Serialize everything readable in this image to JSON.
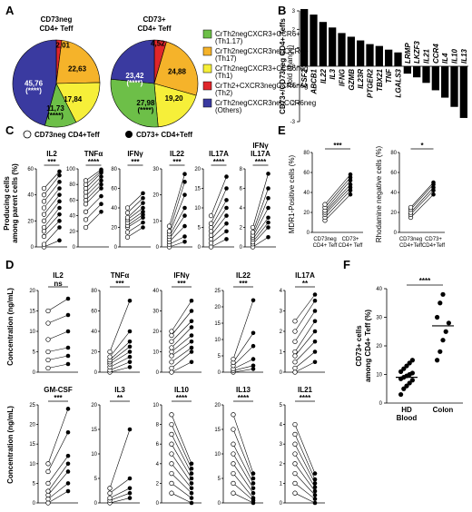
{
  "panels": {
    "A": "A",
    "B": "B",
    "C": "C",
    "D": "D",
    "E": "E",
    "F": "F"
  },
  "chart_data": [
    {
      "type": "pie",
      "panel": "A",
      "title_lines": [
        "CD73neg",
        "CD4+ Teff"
      ],
      "values": [
        2.01,
        22.63,
        17.84,
        11.73,
        45.76
      ],
      "labels": [
        "2,01",
        "22,63",
        "17,84",
        "11,73\n(****)",
        "45,76\n(****)"
      ],
      "colors": [
        "#e0262a",
        "#f5b32a",
        "#f6ef39",
        "#6dbf48",
        "#3a3aa0"
      ]
    },
    {
      "type": "pie",
      "panel": "A",
      "title_lines": [
        "CD73+",
        "CD4+ Teff"
      ],
      "values": [
        4.52,
        24.88,
        19.2,
        27.98,
        23.42
      ],
      "labels": [
        "4,52",
        "24,88",
        "19,20",
        "27,98\n(****)",
        "23,42\n(****)"
      ],
      "colors": [
        "#e0262a",
        "#f5b32a",
        "#f6ef39",
        "#6dbf48",
        "#3a3aa0"
      ]
    },
    {
      "type": "legend",
      "panel": "A",
      "entries": [
        {
          "label": "CrTh2negCXCR3+CCR6+",
          "sub": "(Th1.17)",
          "color": "#6dbf48"
        },
        {
          "label": "CrTh2negCXCR3negCCR6+",
          "sub": "(Th17)",
          "color": "#f5b32a"
        },
        {
          "label": "CrTh2negCXCR3+CCR6neg",
          "sub": "(Th1)",
          "color": "#f6ef39"
        },
        {
          "label": "CrTh2+CXCR3negCCR6neg",
          "sub": "(Th2)",
          "color": "#e0262a"
        },
        {
          "label": "CrTh2negCXCR3negCCR6neg",
          "sub": "(Others)",
          "color": "#3a3aa0"
        }
      ]
    },
    {
      "type": "bar",
      "panel": "B",
      "ylabel": "CD73+/CD73neg CD4+ Teffs",
      "ylabel2": "(fold change)",
      "ylim": [
        -3,
        3
      ],
      "yticks": [
        "3",
        "2",
        "1",
        "0",
        "-1",
        "-2",
        "-3"
      ],
      "categories": [
        "CSF2",
        "ABCB1",
        "IL22",
        "IL3",
        "IFNG",
        "GZMB",
        "IL23R",
        "PTGER2",
        "TBX21",
        "TNF",
        "LGALS3",
        "LRMP",
        "LKZF3",
        "IL21",
        "CCR4",
        "IL4",
        "IL10",
        "IL13"
      ],
      "values": [
        3.1,
        2.8,
        2.4,
        2.1,
        1.8,
        1.6,
        1.4,
        1.2,
        1.1,
        0.9,
        0.75,
        -0.4,
        -0.6,
        -0.9,
        -1.3,
        -1.7,
        -2.2,
        -2.8
      ]
    },
    {
      "type": "scatter",
      "panel": "C",
      "legend": [
        "CD73neg CD4+Teff",
        "CD73+ CD4+Teff"
      ],
      "ylabel": "Producing cells",
      "ylabel2": "among parent cells (%)",
      "plots": [
        {
          "title": "IL2",
          "sig": "***",
          "yticks": [
            "0",
            "20",
            "40",
            "60"
          ],
          "ymax": 60,
          "left": [
            0,
            2,
            8,
            12,
            15,
            20,
            25,
            30,
            35,
            40,
            45
          ],
          "right": [
            5,
            15,
            20,
            25,
            30,
            35,
            40,
            45,
            50,
            55,
            58
          ]
        },
        {
          "title": "TNFα",
          "sig": "****",
          "yticks": [
            "0",
            "20",
            "40",
            "60",
            "80",
            "100"
          ],
          "ymax": 100,
          "left": [
            25,
            35,
            45,
            55,
            60,
            65,
            70,
            75,
            80,
            85
          ],
          "right": [
            45,
            55,
            65,
            75,
            80,
            85,
            90,
            95,
            97,
            99
          ]
        },
        {
          "title": "IFNγ",
          "sig": "***",
          "yticks": [
            "0",
            "20",
            "40",
            "60",
            "80"
          ],
          "ymax": 80,
          "left": [
            10,
            15,
            20,
            22,
            25,
            28,
            30,
            35,
            40
          ],
          "right": [
            20,
            25,
            30,
            33,
            36,
            40,
            45,
            50,
            55
          ]
        },
        {
          "title": "IL22",
          "sig": "***",
          "yticks": [
            "0",
            "10",
            "20",
            "30"
          ],
          "ymax": 30,
          "left": [
            0,
            1,
            2,
            3,
            4,
            5,
            6,
            8
          ],
          "right": [
            2,
            4,
            8,
            12,
            15,
            20,
            25,
            28
          ]
        },
        {
          "title": "IL17A",
          "sig": "****",
          "yticks": [
            "0",
            "5",
            "10",
            "15",
            "20"
          ],
          "ymax": 20,
          "left": [
            0,
            1,
            2,
            3,
            4,
            5,
            6,
            8
          ],
          "right": [
            2,
            4,
            6,
            8,
            10,
            12,
            15,
            18
          ]
        },
        {
          "title": "IFNγ\nIL17A",
          "sig": "****",
          "yticks": [
            "0",
            "2",
            "4",
            "6",
            "8"
          ],
          "ymax": 8,
          "left": [
            0,
            0.3,
            0.5,
            0.8,
            1,
            1.2,
            1.5,
            2
          ],
          "right": [
            1,
            2,
            2.5,
            3,
            4,
            5,
            6,
            7.5
          ]
        }
      ]
    },
    {
      "type": "scatter",
      "panel": "E",
      "plots": [
        {
          "ylabel": "MDR1-Positive cells (%)",
          "yticks": [
            "0",
            "20",
            "40",
            "60",
            "80"
          ],
          "ymax": 80,
          "sig": "***",
          "xlabels": [
            "CD73neg",
            "CD4+ Teff",
            "CD73+",
            "CD4+ Teff"
          ],
          "left": [
            12,
            15,
            18,
            20,
            22,
            25,
            28
          ],
          "right": [
            38,
            42,
            45,
            48,
            52,
            55,
            58
          ]
        },
        {
          "ylabel": "Rhodamine negative cells (%)",
          "yticks": [
            "0",
            "20",
            "40",
            "60",
            "80"
          ],
          "ymax": 80,
          "sig": "*",
          "xlabels": [
            "CD73neg",
            "CD4+Teff",
            "CD73+",
            "CD4+Teff"
          ],
          "left": [
            15,
            18,
            20,
            23,
            25
          ],
          "right": [
            38,
            42,
            45,
            48,
            50
          ]
        }
      ]
    },
    {
      "type": "scatter",
      "panel": "D",
      "ylabel": "Concentration (ng/mL)",
      "plots": [
        {
          "title": "IL2",
          "sig": "ns",
          "yticks": [
            "0",
            "5",
            "10",
            "15",
            "20"
          ],
          "ymax": 20,
          "left": [
            1,
            3,
            5,
            8,
            12,
            15
          ],
          "right": [
            2,
            4,
            6,
            10,
            14,
            18
          ]
        },
        {
          "title": "TNFα",
          "sig": "***",
          "yticks": [
            "0",
            "20",
            "40",
            "60",
            "80"
          ],
          "ymax": 80,
          "left": [
            0,
            2,
            5,
            8,
            10,
            12,
            15,
            20
          ],
          "right": [
            5,
            10,
            15,
            20,
            25,
            30,
            40,
            70
          ]
        },
        {
          "title": "IFNγ",
          "sig": "***",
          "yticks": [
            "0",
            "10",
            "20",
            "30",
            "40"
          ],
          "ymax": 40,
          "left": [
            0,
            2,
            5,
            8,
            10,
            12,
            15,
            18,
            20
          ],
          "right": [
            5,
            10,
            12,
            15,
            18,
            22,
            25,
            30,
            35
          ]
        },
        {
          "title": "IL22",
          "sig": "***",
          "yticks": [
            "0",
            "5",
            "10",
            "15",
            "20",
            "25"
          ],
          "ymax": 25,
          "left": [
            0,
            0.5,
            1,
            2,
            3,
            4
          ],
          "right": [
            1,
            2,
            4,
            8,
            12,
            22
          ]
        },
        {
          "title": "IL17A",
          "sig": "**",
          "yticks": [
            "0",
            "1",
            "2",
            "3",
            "4"
          ],
          "ymax": 4,
          "left": [
            0,
            0.2,
            0.5,
            0.8,
            1,
            1.5,
            2,
            2.5
          ],
          "right": [
            0.5,
            1,
            1.5,
            2,
            2.5,
            3,
            3.5,
            3.8
          ]
        },
        {
          "title": "GM-CSF",
          "sig": "***",
          "yticks": [
            "0",
            "5",
            "10",
            "15",
            "20",
            "25"
          ],
          "ymax": 25,
          "left": [
            0,
            1,
            2,
            3,
            5,
            8,
            10
          ],
          "right": [
            3,
            5,
            8,
            10,
            12,
            18,
            24
          ]
        },
        {
          "title": "IL3",
          "sig": "**",
          "yticks": [
            "0",
            "5",
            "10",
            "15",
            "20"
          ],
          "ymax": 20,
          "left": [
            0,
            0.5,
            1,
            2,
            3
          ],
          "right": [
            1,
            2,
            3,
            5,
            15
          ]
        },
        {
          "title": "IL10",
          "sig": "****",
          "yticks": [
            "0",
            "2",
            "4",
            "6",
            "8",
            "10"
          ],
          "ymax": 10,
          "left": [
            1,
            2,
            3,
            4,
            5,
            6,
            7,
            8,
            9
          ],
          "right": [
            0,
            0.5,
            1,
            1.5,
            2,
            2.5,
            3,
            3.5,
            4
          ]
        },
        {
          "title": "IL13",
          "sig": "****",
          "yticks": [
            "0",
            "5",
            "10",
            "15",
            "20"
          ],
          "ymax": 20,
          "left": [
            2,
            4,
            6,
            8,
            10,
            12,
            15,
            18
          ],
          "right": [
            0,
            0.5,
            1,
            2,
            3,
            4,
            5,
            6
          ]
        },
        {
          "title": "IL21",
          "sig": "****",
          "yticks": [
            "0",
            "1",
            "2",
            "3",
            "4",
            "5"
          ],
          "ymax": 5,
          "left": [
            0.5,
            1,
            1.5,
            2,
            2.5,
            3,
            3.5,
            4
          ],
          "right": [
            0,
            0.2,
            0.4,
            0.6,
            0.8,
            1,
            1.2,
            1.5
          ]
        }
      ]
    },
    {
      "type": "scatter",
      "panel": "F",
      "ylabel": "CD73+ cells",
      "ylabel2": "among CD4+ Teff (%)",
      "sig": "****",
      "yticks": [
        "0",
        "10",
        "20",
        "30",
        "40"
      ],
      "ymax": 40,
      "groups": [
        {
          "name": "HD\nBlood",
          "values": [
            3,
            5,
            6,
            7,
            8,
            8.5,
            9,
            9.5,
            10,
            10.5,
            11,
            12,
            13,
            14,
            15
          ],
          "median": 9
        },
        {
          "name": "Colon",
          "values": [
            15,
            18,
            22,
            25,
            28,
            30,
            35,
            38
          ],
          "median": 27
        }
      ]
    }
  ]
}
